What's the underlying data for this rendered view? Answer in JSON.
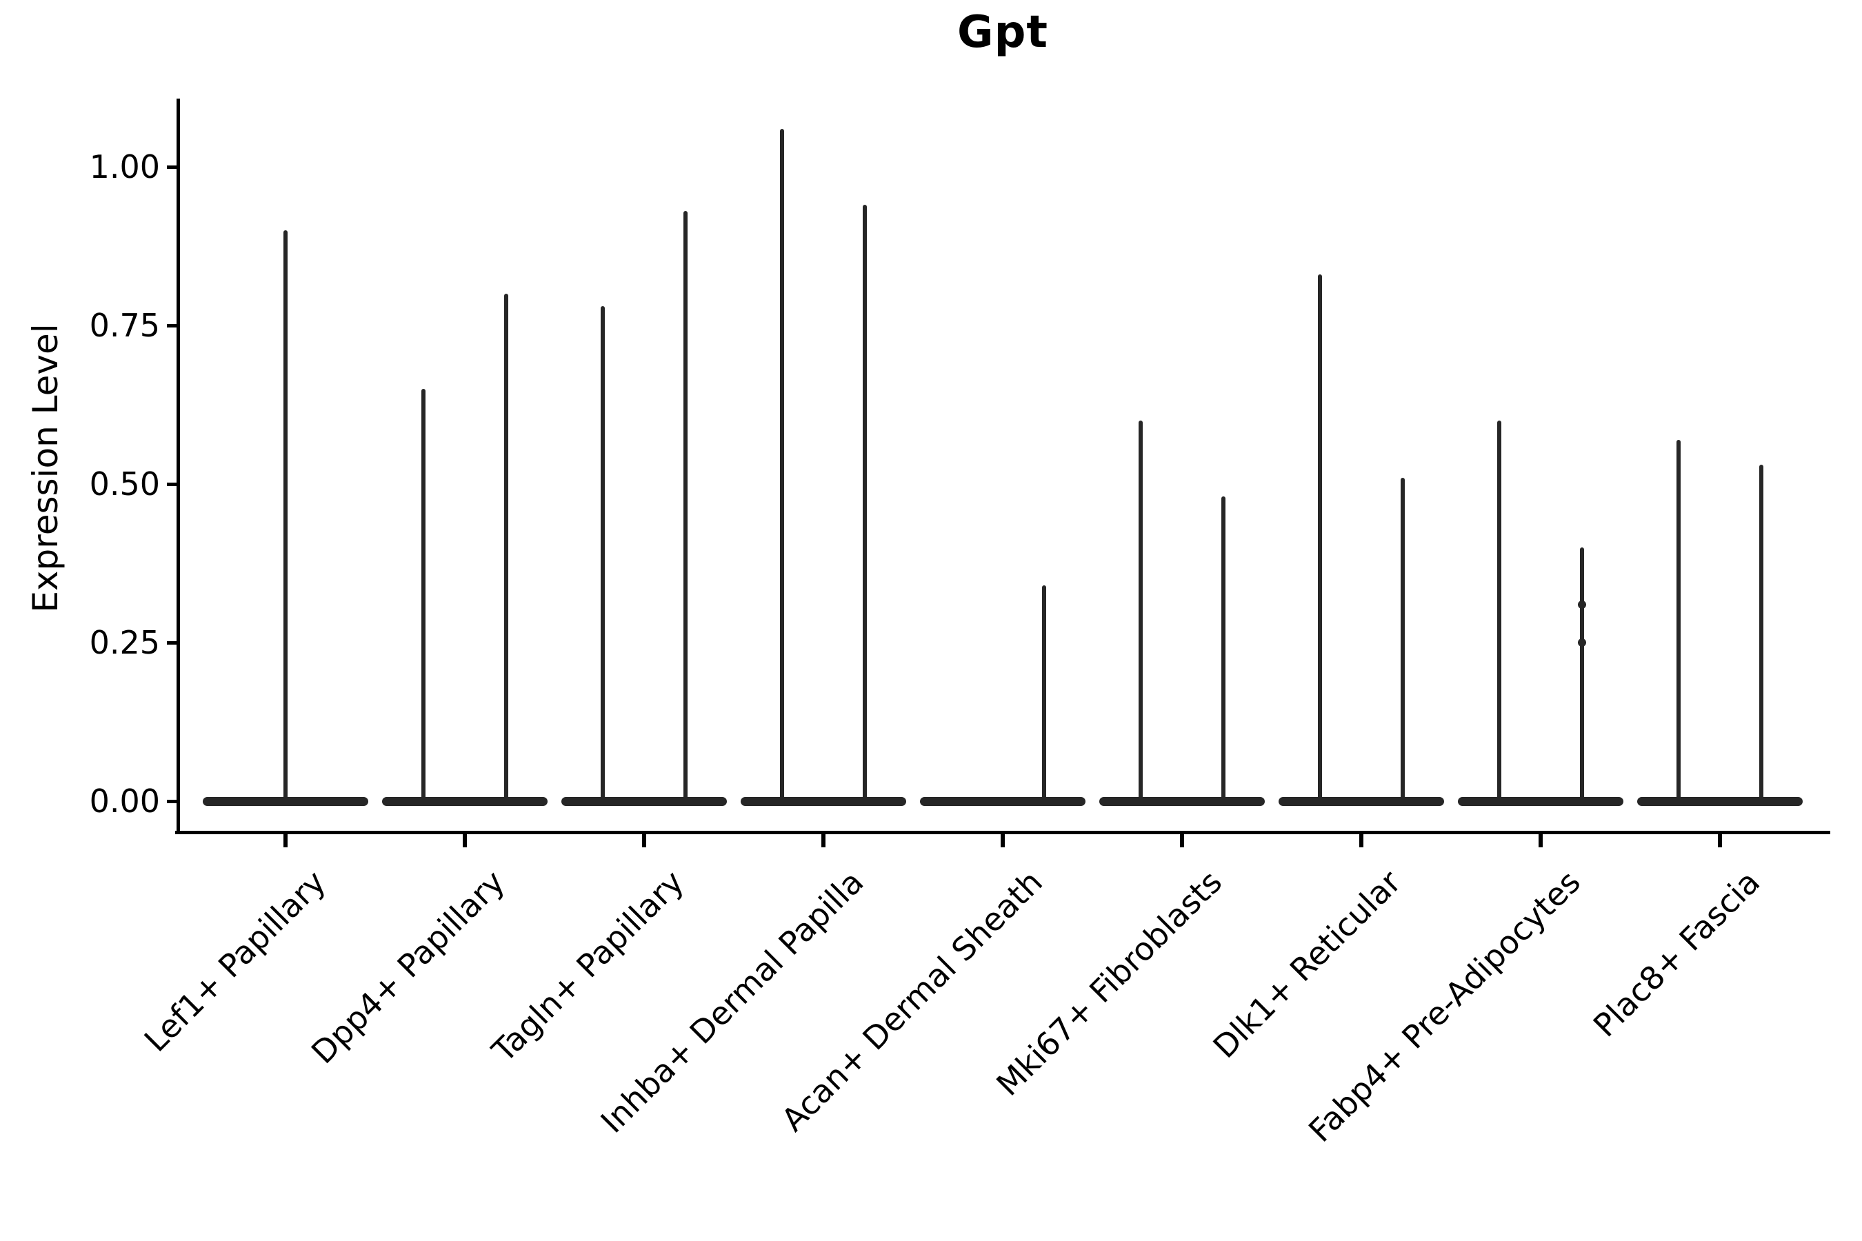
{
  "chart_data": {
    "type": "violin",
    "title": "Gpt",
    "xlabel": "",
    "ylabel": "Expression Level",
    "ytick_labels": [
      "1.00",
      "0.75",
      "0.50",
      "0.25",
      "0.00"
    ],
    "ytick_values": [
      1.0,
      0.75,
      0.5,
      0.25,
      0.0
    ],
    "ylim": [
      -0.05,
      1.11
    ],
    "grid": false,
    "legend": "none",
    "violin_color": "#262626",
    "description": "Violin plot of Gpt expression; nearly all density lies at 0 with thin spikes up to each group's maximum.",
    "categories": [
      "Lef1+ Papillary",
      "Dpp4+ Papillary",
      "Tagln+ Papillary",
      "Inhba+ Dermal Papilla",
      "Acan+ Dermal Sheath",
      "Mki67+ Fibroblasts",
      "Dlk1+ Reticular",
      "Fabp4+ Pre-Adipocytes",
      "Plac8+ Fascia"
    ],
    "violins": [
      {
        "category": "Lef1+ Papillary",
        "spikes": [
          {
            "group": "center",
            "max": 0.9,
            "bumps": []
          }
        ]
      },
      {
        "category": "Dpp4+ Papillary",
        "spikes": [
          {
            "group": "left",
            "max": 0.65,
            "bumps": []
          },
          {
            "group": "right",
            "max": 0.8,
            "bumps": []
          }
        ]
      },
      {
        "category": "Tagln+ Papillary",
        "spikes": [
          {
            "group": "left",
            "max": 0.78,
            "bumps": []
          },
          {
            "group": "right",
            "max": 0.93,
            "bumps": []
          }
        ]
      },
      {
        "category": "Inhba+ Dermal Papilla",
        "spikes": [
          {
            "group": "left",
            "max": 1.06,
            "bumps": []
          },
          {
            "group": "right",
            "max": 0.94,
            "bumps": []
          }
        ]
      },
      {
        "category": "Acan+ Dermal Sheath",
        "spikes": [
          {
            "group": "right",
            "max": 0.34,
            "bumps": []
          }
        ]
      },
      {
        "category": "Mki67+ Fibroblasts",
        "spikes": [
          {
            "group": "left",
            "max": 0.6,
            "bumps": []
          },
          {
            "group": "right",
            "max": 0.48,
            "bumps": []
          }
        ]
      },
      {
        "category": "Dlk1+ Reticular",
        "spikes": [
          {
            "group": "left",
            "max": 0.83,
            "bumps": []
          },
          {
            "group": "right",
            "max": 0.51,
            "bumps": []
          }
        ]
      },
      {
        "category": "Fabp4+ Pre-Adipocytes",
        "spikes": [
          {
            "group": "left",
            "max": 0.6,
            "bumps": []
          },
          {
            "group": "right",
            "max": 0.4,
            "bumps": [
              0.31,
              0.25
            ]
          }
        ]
      },
      {
        "category": "Plac8+ Fascia",
        "spikes": [
          {
            "group": "left",
            "max": 0.57,
            "bumps": []
          },
          {
            "group": "right",
            "max": 0.53,
            "bumps": []
          }
        ]
      }
    ]
  }
}
